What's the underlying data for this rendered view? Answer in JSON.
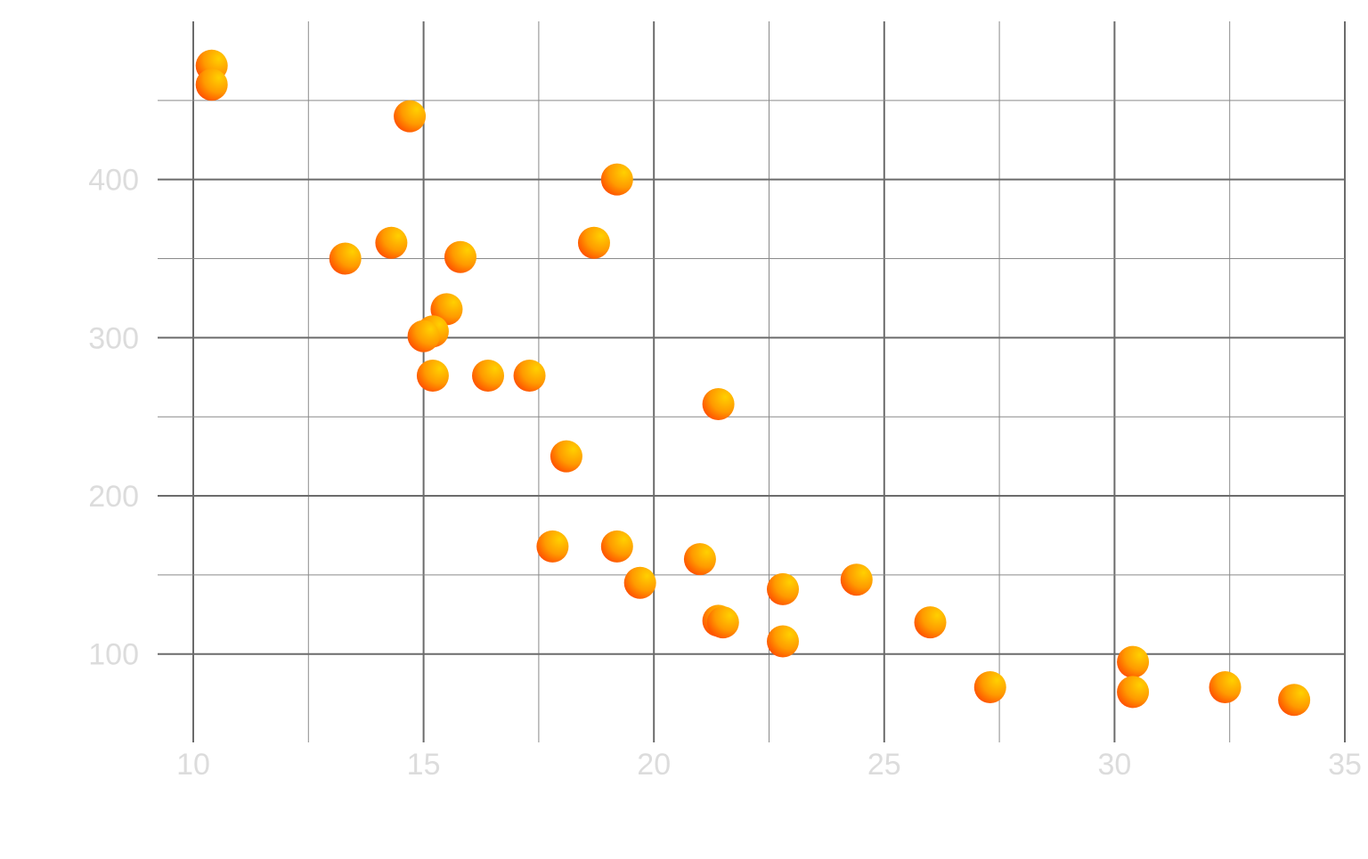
{
  "chart_data": {
    "type": "scatter",
    "title": "",
    "xlabel": "",
    "ylabel": "",
    "xlim": [
      10,
      35
    ],
    "ylim": [
      52,
      500
    ],
    "x_ticks": [
      10,
      15,
      20,
      25,
      30,
      35
    ],
    "x_tick_labels": [
      "10",
      "15",
      "20",
      "25",
      "30",
      "35"
    ],
    "y_ticks": [
      100,
      200,
      300,
      400
    ],
    "y_tick_labels": [
      "100",
      "200",
      "300",
      "400"
    ],
    "grid": true,
    "legend": "none",
    "colors": {
      "point_light": "#ffd000",
      "point_dark": "#ff4800",
      "grid_major": "#6b6b6b",
      "grid_minor": "#8a8a8a",
      "tick_label": "#dcdcdc"
    },
    "series": [
      {
        "points": [
          {
            "x": 10.4,
            "y": 472
          },
          {
            "x": 10.4,
            "y": 460
          },
          {
            "x": 14.7,
            "y": 440
          },
          {
            "x": 19.2,
            "y": 400
          },
          {
            "x": 13.3,
            "y": 350
          },
          {
            "x": 14.3,
            "y": 360
          },
          {
            "x": 15.8,
            "y": 351
          },
          {
            "x": 18.7,
            "y": 360
          },
          {
            "x": 15.5,
            "y": 318
          },
          {
            "x": 15.2,
            "y": 304
          },
          {
            "x": 15.0,
            "y": 301
          },
          {
            "x": 15.2,
            "y": 276
          },
          {
            "x": 16.4,
            "y": 276
          },
          {
            "x": 17.3,
            "y": 276
          },
          {
            "x": 21.4,
            "y": 258
          },
          {
            "x": 18.1,
            "y": 225
          },
          {
            "x": 17.8,
            "y": 168
          },
          {
            "x": 19.2,
            "y": 168
          },
          {
            "x": 21.0,
            "y": 160
          },
          {
            "x": 19.7,
            "y": 145
          },
          {
            "x": 22.8,
            "y": 141
          },
          {
            "x": 24.4,
            "y": 147
          },
          {
            "x": 21.4,
            "y": 121
          },
          {
            "x": 21.5,
            "y": 120
          },
          {
            "x": 26.0,
            "y": 120
          },
          {
            "x": 22.8,
            "y": 108
          },
          {
            "x": 30.4,
            "y": 95
          },
          {
            "x": 27.3,
            "y": 79
          },
          {
            "x": 30.4,
            "y": 76
          },
          {
            "x": 32.4,
            "y": 79
          },
          {
            "x": 33.9,
            "y": 71
          }
        ]
      }
    ]
  }
}
